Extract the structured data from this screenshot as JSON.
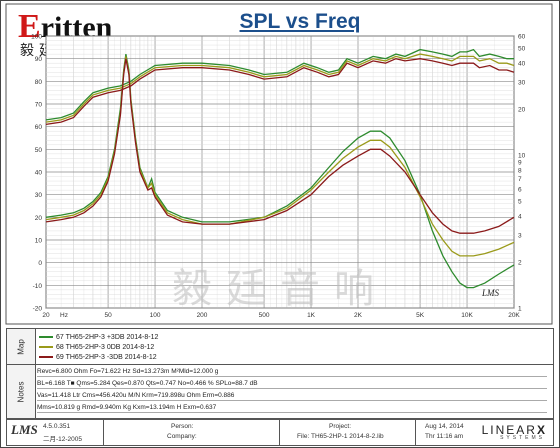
{
  "brand": {
    "logo_text": "ritten",
    "logo_initial": "E",
    "logo_cn": "毅廷音响",
    "watermark": "毅廷音响",
    "chart_mark": "LMS"
  },
  "chart_data": {
    "type": "line",
    "title": "SPL vs Freq",
    "x_scale": "log",
    "xlim": [
      20,
      20000
    ],
    "x_ticks": [
      {
        "v": 20,
        "t": "20"
      },
      {
        "v": 50,
        "t": "50"
      },
      {
        "v": 100,
        "t": "100"
      },
      {
        "v": 200,
        "t": "200"
      },
      {
        "v": 500,
        "t": "500"
      },
      {
        "v": 1000,
        "t": "1K"
      },
      {
        "v": 2000,
        "t": "2K"
      },
      {
        "v": 5000,
        "t": "5K"
      },
      {
        "v": 10000,
        "t": "10K"
      },
      {
        "v": 20000,
        "t": "20K"
      }
    ],
    "x_suffix": "Hz",
    "left_axis": {
      "ylim": [
        -20,
        100
      ],
      "ticks": [
        100,
        90,
        80,
        70,
        60,
        50,
        40,
        30,
        20,
        10,
        0,
        -10,
        -20
      ]
    },
    "right_axis": {
      "ylim": [
        1,
        60
      ],
      "ticks": [
        60,
        50,
        40,
        30,
        20,
        10,
        9,
        8,
        7,
        6,
        5,
        4,
        3,
        2,
        1
      ],
      "scale": "log-ish"
    },
    "grid": true,
    "series": [
      {
        "name": "67  TH65-2HP-3  +3DB  2014-8-12",
        "color": "#2e8b2e",
        "impedance": [
          [
            20,
            20
          ],
          [
            25,
            21
          ],
          [
            30,
            22
          ],
          [
            35,
            24
          ],
          [
            40,
            27
          ],
          [
            45,
            31
          ],
          [
            50,
            38
          ],
          [
            55,
            50
          ],
          [
            60,
            68
          ],
          [
            63,
            85
          ],
          [
            65,
            92
          ],
          [
            68,
            85
          ],
          [
            70,
            72
          ],
          [
            75,
            55
          ],
          [
            80,
            42
          ],
          [
            90,
            33
          ],
          [
            95,
            37
          ],
          [
            100,
            31
          ],
          [
            120,
            23
          ],
          [
            150,
            20
          ],
          [
            200,
            18
          ],
          [
            300,
            18
          ],
          [
            500,
            20
          ],
          [
            700,
            25
          ],
          [
            1000,
            33
          ],
          [
            1300,
            42
          ],
          [
            1600,
            49
          ],
          [
            2000,
            55
          ],
          [
            2400,
            58
          ],
          [
            2800,
            58
          ],
          [
            3200,
            55
          ],
          [
            4000,
            45
          ],
          [
            5000,
            30
          ],
          [
            6000,
            14
          ],
          [
            7000,
            3
          ],
          [
            8000,
            -4
          ],
          [
            9000,
            -9
          ],
          [
            10000,
            -11
          ],
          [
            11000,
            -11
          ],
          [
            13000,
            -9
          ],
          [
            16000,
            -5
          ],
          [
            20000,
            -1
          ]
        ],
        "spl": [
          [
            20,
            63
          ],
          [
            25,
            64
          ],
          [
            30,
            66
          ],
          [
            35,
            71
          ],
          [
            40,
            75
          ],
          [
            50,
            77
          ],
          [
            60,
            78
          ],
          [
            70,
            80
          ],
          [
            80,
            83
          ],
          [
            100,
            87
          ],
          [
            150,
            88
          ],
          [
            200,
            88
          ],
          [
            300,
            87
          ],
          [
            400,
            85
          ],
          [
            500,
            83
          ],
          [
            700,
            84
          ],
          [
            900,
            88
          ],
          [
            1100,
            86
          ],
          [
            1300,
            84
          ],
          [
            1500,
            85
          ],
          [
            1700,
            90
          ],
          [
            2000,
            88
          ],
          [
            2500,
            91
          ],
          [
            3000,
            90
          ],
          [
            3500,
            92
          ],
          [
            4000,
            91
          ],
          [
            5000,
            94
          ],
          [
            6000,
            93
          ],
          [
            7000,
            92
          ],
          [
            8000,
            91
          ],
          [
            9000,
            93
          ],
          [
            10000,
            93
          ],
          [
            11000,
            94
          ],
          [
            12000,
            91
          ],
          [
            14000,
            92
          ],
          [
            16000,
            91
          ],
          [
            18000,
            90
          ],
          [
            20000,
            90
          ]
        ]
      },
      {
        "name": "68  TH65-2HP-3  0DB  2014-8-12",
        "color": "#9a9a1a",
        "impedance": [
          [
            20,
            19
          ],
          [
            25,
            20
          ],
          [
            30,
            21
          ],
          [
            35,
            23
          ],
          [
            40,
            26
          ],
          [
            45,
            30
          ],
          [
            50,
            37
          ],
          [
            55,
            49
          ],
          [
            60,
            66
          ],
          [
            63,
            84
          ],
          [
            65,
            91
          ],
          [
            68,
            84
          ],
          [
            70,
            71
          ],
          [
            75,
            54
          ],
          [
            80,
            41
          ],
          [
            90,
            33
          ],
          [
            95,
            35
          ],
          [
            100,
            30
          ],
          [
            120,
            22
          ],
          [
            150,
            19
          ],
          [
            200,
            17
          ],
          [
            300,
            17
          ],
          [
            500,
            20
          ],
          [
            700,
            24
          ],
          [
            1000,
            32
          ],
          [
            1300,
            40
          ],
          [
            1600,
            46
          ],
          [
            2000,
            51
          ],
          [
            2400,
            54
          ],
          [
            2800,
            54
          ],
          [
            3200,
            51
          ],
          [
            4000,
            42
          ],
          [
            5000,
            29
          ],
          [
            6000,
            17
          ],
          [
            7000,
            10
          ],
          [
            8000,
            5
          ],
          [
            9000,
            3
          ],
          [
            10000,
            3
          ],
          [
            11000,
            3
          ],
          [
            13000,
            4
          ],
          [
            16000,
            6
          ],
          [
            20000,
            9
          ]
        ],
        "spl": [
          [
            20,
            62
          ],
          [
            25,
            63
          ],
          [
            30,
            65
          ],
          [
            35,
            70
          ],
          [
            40,
            74
          ],
          [
            50,
            76
          ],
          [
            60,
            77
          ],
          [
            70,
            79
          ],
          [
            80,
            82
          ],
          [
            100,
            86
          ],
          [
            150,
            87
          ],
          [
            200,
            87
          ],
          [
            300,
            86
          ],
          [
            400,
            84
          ],
          [
            500,
            82
          ],
          [
            700,
            83
          ],
          [
            900,
            87
          ],
          [
            1100,
            85
          ],
          [
            1300,
            83
          ],
          [
            1500,
            84
          ],
          [
            1700,
            89
          ],
          [
            2000,
            87
          ],
          [
            2500,
            90
          ],
          [
            3000,
            89
          ],
          [
            3500,
            91
          ],
          [
            4000,
            90
          ],
          [
            5000,
            92
          ],
          [
            6000,
            91
          ],
          [
            7000,
            90
          ],
          [
            8000,
            89
          ],
          [
            9000,
            91
          ],
          [
            10000,
            91
          ],
          [
            11000,
            91
          ],
          [
            12000,
            89
          ],
          [
            14000,
            90
          ],
          [
            16000,
            88
          ],
          [
            18000,
            88
          ],
          [
            20000,
            87
          ]
        ]
      },
      {
        "name": "69  TH65-2HP-3  -3DB  2014-8-12",
        "color": "#8b1a1a",
        "impedance": [
          [
            20,
            18
          ],
          [
            25,
            19
          ],
          [
            30,
            20
          ],
          [
            35,
            22
          ],
          [
            40,
            25
          ],
          [
            45,
            29
          ],
          [
            50,
            36
          ],
          [
            55,
            48
          ],
          [
            60,
            65
          ],
          [
            63,
            83
          ],
          [
            65,
            90
          ],
          [
            68,
            83
          ],
          [
            70,
            70
          ],
          [
            75,
            53
          ],
          [
            80,
            40
          ],
          [
            90,
            32
          ],
          [
            95,
            33
          ],
          [
            100,
            29
          ],
          [
            120,
            21
          ],
          [
            150,
            18
          ],
          [
            200,
            17
          ],
          [
            300,
            17
          ],
          [
            500,
            19
          ],
          [
            700,
            23
          ],
          [
            1000,
            30
          ],
          [
            1300,
            38
          ],
          [
            1600,
            43
          ],
          [
            2000,
            47
          ],
          [
            2400,
            50
          ],
          [
            2800,
            50
          ],
          [
            3200,
            47
          ],
          [
            4000,
            40
          ],
          [
            5000,
            30
          ],
          [
            6000,
            22
          ],
          [
            7000,
            17
          ],
          [
            8000,
            14
          ],
          [
            9000,
            13
          ],
          [
            10000,
            13
          ],
          [
            11000,
            13
          ],
          [
            13000,
            14
          ],
          [
            16000,
            16
          ],
          [
            20000,
            20
          ]
        ],
        "spl": [
          [
            20,
            61
          ],
          [
            25,
            62
          ],
          [
            30,
            64
          ],
          [
            35,
            69
          ],
          [
            40,
            73
          ],
          [
            50,
            75
          ],
          [
            60,
            76
          ],
          [
            70,
            78
          ],
          [
            80,
            81
          ],
          [
            100,
            85
          ],
          [
            150,
            86
          ],
          [
            200,
            86
          ],
          [
            300,
            85
          ],
          [
            400,
            83
          ],
          [
            500,
            81
          ],
          [
            700,
            82
          ],
          [
            900,
            86
          ],
          [
            1100,
            84
          ],
          [
            1300,
            82
          ],
          [
            1500,
            83
          ],
          [
            1700,
            88
          ],
          [
            2000,
            86
          ],
          [
            2500,
            89
          ],
          [
            3000,
            88
          ],
          [
            3500,
            90
          ],
          [
            4000,
            89
          ],
          [
            5000,
            90
          ],
          [
            6000,
            89
          ],
          [
            7000,
            88
          ],
          [
            8000,
            87
          ],
          [
            9000,
            88
          ],
          [
            10000,
            88
          ],
          [
            11000,
            88
          ],
          [
            12000,
            86
          ],
          [
            14000,
            87
          ],
          [
            16000,
            85
          ],
          [
            18000,
            85
          ],
          [
            20000,
            84
          ]
        ]
      }
    ]
  },
  "map_panel": {
    "tab": "Map",
    "entries": [
      {
        "text": "67  TH65-2HP-3  +3DB  2014-8-12",
        "color": "#2e8b2e"
      },
      {
        "text": "68  TH65-2HP-3  0DB  2014-8-12",
        "color": "#9a9a1a"
      },
      {
        "text": "69  TH65-2HP-3  -3DB  2014-8-12",
        "color": "#8b1a1a"
      }
    ]
  },
  "notes_panel": {
    "tab": "Notes",
    "lines": [
      "Revc=6.800 Ohm  Fo=71.622 Hz  Sd=13.273m M²Mld=12.000 g",
      "BL=6.168 T■  Qms=5.284  Qes=0.870  Qts=0.747  No=0.466 %  SPLo=88.7 dB",
      "Vas=11.418 Ltr  Cms=456.420u M/N  Krm=719.898u Ohm  Erm=0.886",
      "Mms=10.819 g  Rmd=9.940m Kg  Kxm=13.194m H  Exm=0.637"
    ]
  },
  "footer": {
    "lms": "LMS",
    "version": "4.5.0.351",
    "version_date": "二月-12-2005",
    "person_label": "Person:",
    "company_label": "Company:",
    "project_label": "Project:",
    "file_label": "File: TH65-2HP-1  2014-8-2.lib",
    "date_line": "Aug 14, 2014",
    "time_line": "Thr 11:16 am",
    "brand": "LINEAR",
    "brand_x": "X",
    "brand_sub": "SYSTEMS"
  }
}
